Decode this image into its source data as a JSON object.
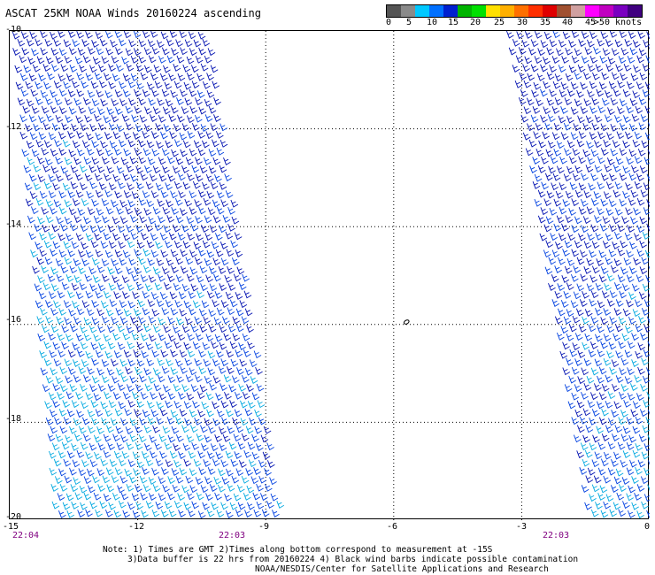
{
  "title": "ASCAT 25KM NOAA Winds 20160224 ascending",
  "colorbar": {
    "colors": [
      "#555555",
      "#8a8a8a",
      "#00c8ff",
      "#0070ff",
      "#0020d0",
      "#00b400",
      "#00e000",
      "#ffe000",
      "#ffb000",
      "#ff7000",
      "#ff3000",
      "#e00000",
      "#a05030",
      "#d0a0a0",
      "#ff00ff",
      "#c000c0",
      "#7a00c0",
      "#400080"
    ],
    "labels": [
      "0",
      "5",
      "10",
      "15",
      "20",
      "25",
      "30",
      "35",
      "40",
      "45",
      ">50 knots"
    ]
  },
  "axes": {
    "y_labels": [
      "-10",
      "-12",
      "-14",
      "-16",
      "-18",
      "-20"
    ],
    "x_labels": [
      "-15",
      "-12",
      "-9",
      "-6",
      "-3",
      "0"
    ],
    "lat_range": [
      -20,
      -10
    ],
    "lon_range": [
      -15,
      0
    ]
  },
  "times": [
    "22:04",
    "22:03",
    "22:03"
  ],
  "notes": {
    "line1": "Note: 1) Times are GMT 2)Times along bottom correspond to measurement at -15S",
    "line2": "3)Data buffer is 22 hrs from 20160224 4) Black wind barbs indicate possible contamination",
    "line3": "NOAA/NESDIS/Center for Satellite Applications and Research"
  },
  "map_data": {
    "swaths": [
      {
        "name": "west",
        "lon_west_top": -15,
        "lon_east_top": -10.4,
        "lon_west_bottom": -14.0,
        "lon_east_bottom": -8.7
      },
      {
        "name": "east",
        "lon_west_top": -3.4,
        "lon_east_top": 0,
        "lon_west_bottom": -1.5,
        "lon_east_bottom": 0
      }
    ],
    "barb_colors": {
      "low": "#00a8e0",
      "mid": "#0040e0",
      "high": "#0010b0"
    },
    "island_marker": {
      "lon": -5.7,
      "lat": -15.95
    }
  }
}
